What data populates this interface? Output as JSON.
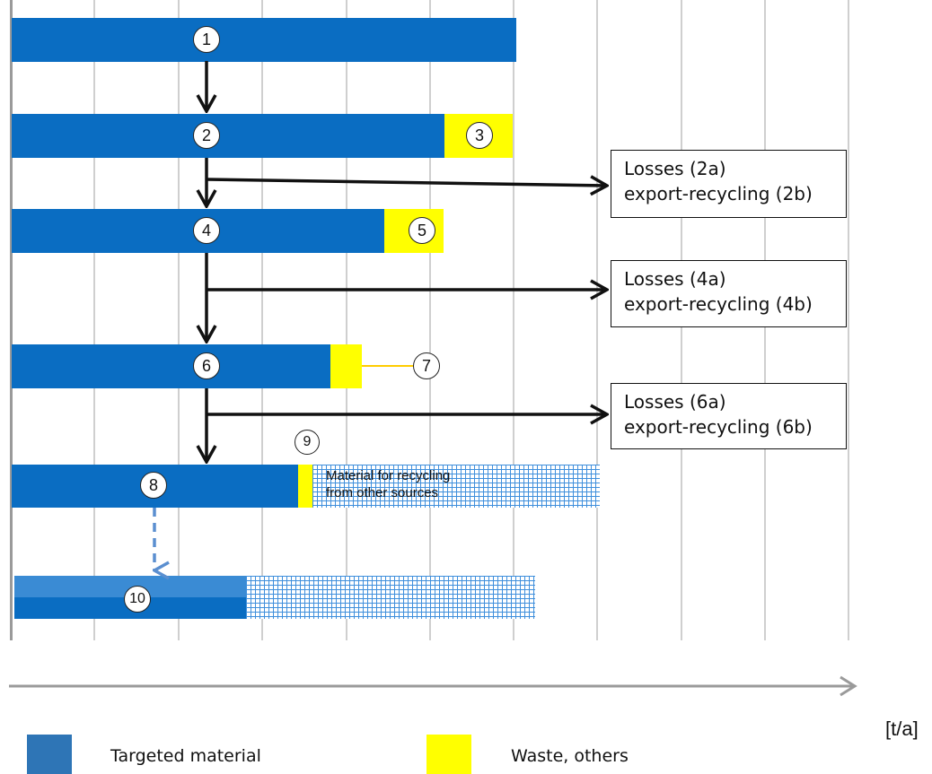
{
  "steps": {
    "s1": "1",
    "s2": "2",
    "s3": "3",
    "s4": "4",
    "s5": "5",
    "s6": "6",
    "s7": "7",
    "s8": "8",
    "s9": "9",
    "s10": "10"
  },
  "boxes": {
    "b2": {
      "line1": "Losses (2a)",
      "line2": "export-recycling (2b)"
    },
    "b4": {
      "line1": "Losses (4a)",
      "line2": "export-recycling (4b)"
    },
    "b6": {
      "line1": "Losses (6a)",
      "line2": "export-recycling  (6b)"
    }
  },
  "hatch_label": {
    "line1": "Material for recycling",
    "line2": "from other sources"
  },
  "legend": {
    "targeted": {
      "label": "Targeted material",
      "color": "#2e75b6"
    },
    "waste": {
      "label": "Waste, others",
      "color": "#ffff00"
    }
  },
  "axis_unit": "[t/a]",
  "colors": {
    "targeted_bar": "#0a6dc2",
    "waste_bar": "#ffff00",
    "hatch": "#3f8fdc",
    "dashed_arrow": "#5b8fd0"
  }
}
